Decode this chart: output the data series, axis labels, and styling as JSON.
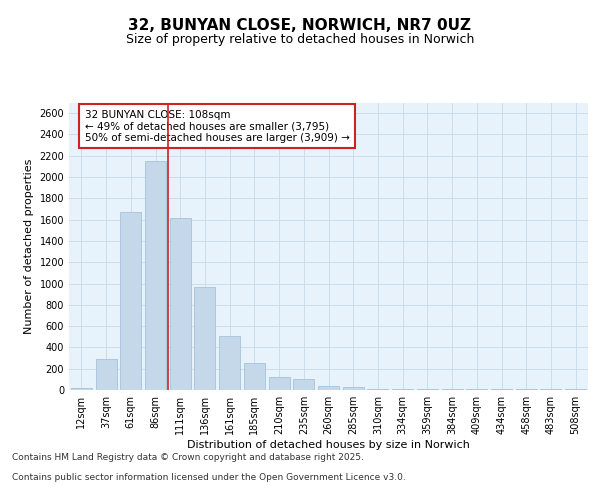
{
  "title_line1": "32, BUNYAN CLOSE, NORWICH, NR7 0UZ",
  "title_line2": "Size of property relative to detached houses in Norwich",
  "xlabel": "Distribution of detached houses by size in Norwich",
  "ylabel": "Number of detached properties",
  "categories": [
    "12sqm",
    "37sqm",
    "61sqm",
    "86sqm",
    "111sqm",
    "136sqm",
    "161sqm",
    "185sqm",
    "210sqm",
    "235sqm",
    "260sqm",
    "285sqm",
    "310sqm",
    "334sqm",
    "359sqm",
    "384sqm",
    "409sqm",
    "434sqm",
    "458sqm",
    "483sqm",
    "508sqm"
  ],
  "values": [
    20,
    290,
    1670,
    2150,
    1620,
    970,
    510,
    250,
    120,
    100,
    40,
    30,
    5,
    5,
    5,
    5,
    5,
    5,
    5,
    5,
    5
  ],
  "bar_color": "#c5d8ea",
  "bar_edge_color": "#9bbdd4",
  "vline_color": "#cc2222",
  "annotation_text": "32 BUNYAN CLOSE: 108sqm\n← 49% of detached houses are smaller (3,795)\n50% of semi-detached houses are larger (3,909) →",
  "annotation_box_color": "white",
  "annotation_box_edge_color": "#cc2222",
  "ylim": [
    0,
    2700
  ],
  "yticks": [
    0,
    200,
    400,
    600,
    800,
    1000,
    1200,
    1400,
    1600,
    1800,
    2000,
    2200,
    2400,
    2600
  ],
  "grid_color": "#ccdce8",
  "background_color": "#e8f2fb",
  "footer_line1": "Contains HM Land Registry data © Crown copyright and database right 2025.",
  "footer_line2": "Contains public sector information licensed under the Open Government Licence v3.0.",
  "title_fontsize": 11,
  "subtitle_fontsize": 9,
  "label_fontsize": 8,
  "tick_fontsize": 7,
  "annotation_fontsize": 7.5,
  "footer_fontsize": 6.5
}
